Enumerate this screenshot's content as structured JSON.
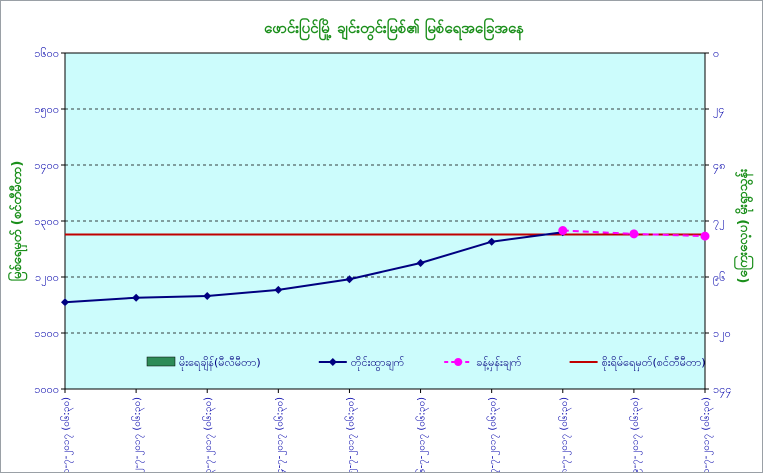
{
  "colors": {
    "plot_bg": "#ccfcfc",
    "title": "#1b8f1b",
    "axis_text": "#0000aa",
    "left_axis_label": "#1b8f1b",
    "right_axis_label": "#1b8f1b",
    "observed_line": "#000080",
    "forecast_line": "#ff00ff",
    "danger_line": "#c00000",
    "rainfall_swatch": "#2e8b57"
  },
  "chart_data": {
    "type": "line",
    "title": "ဖောင်းပြင်မြို့ ချင်းတွင်းမြစ်၏ မြစ်ရေအခြေအနေ",
    "ylabel_left": "မြစ်ရေမှတ် (စင်တီမီတာ)",
    "ylabel_right": "(ကြေးလေ့ပ) မိုးရွာသွန်း",
    "y_left_ticks": [
      "၁၆၀၀",
      "၁၅၀၀",
      "၁၄၀၀",
      "၁၃၀၀",
      "၁၂၀၀",
      "၁၁၀၀",
      "၁၀၀၀"
    ],
    "y_left_range": [
      1000,
      1600
    ],
    "y_right_ticks": [
      "၀",
      "၂၄",
      "၄၈",
      "၇၂",
      "၉၆",
      "၁၂၀",
      "၁၄၄"
    ],
    "y_right_range": [
      0,
      144
    ],
    "y_right_inverted": true,
    "x_tick_labels": [
      "၁၁-၇-၂၀၁၇ (၀၆:၃၀)",
      "၁၂-၇-၂၀၁၇ (၀၆:၃၀)",
      "၁၃-၇-၂၀၁၇ (၀၆:၃၀)",
      "၁၄-၇-၂၀၁၇ (၀၆:၃၀)",
      "၁၅-၇-၂၀၁၇ (၀၆:၃၀)",
      "၁၆-၇-၂၀၁၇ (၀၆:၃၀)",
      "၁၇-၇-၂၀၁၇ (၀၆:၃၀)",
      "၁၈-၇-၂၀၁၇ (၀၆:၃၀)",
      "၁၉-၇-၂၀၁၇ (၀၆:၃၀)",
      "၂၀-၇-၂၀၁၇ (၀၆:၃၀)"
    ],
    "grid": true,
    "legend_position": "bottom-center",
    "series": [
      {
        "name": "မိုးရေချိန်(မီလီမီတာ)",
        "kind": "bar",
        "axis": "right",
        "values": [
          0,
          0,
          0,
          0,
          0,
          0,
          0,
          0,
          0,
          0
        ]
      },
      {
        "name": "တိုင်းထွာချက်",
        "kind": "line",
        "marker": "diamond",
        "axis": "left",
        "values": [
          1155,
          1163,
          1166,
          1177,
          1196,
          1225,
          1263,
          1280,
          null,
          null
        ]
      },
      {
        "name": "ခန့်မှန်းချက်",
        "kind": "dashed-line",
        "marker": "circle",
        "axis": "left",
        "start_index": 7,
        "values": [
          null,
          null,
          null,
          null,
          null,
          null,
          null,
          1283,
          1277,
          1273
        ]
      },
      {
        "name": "စိုးရိမ်ရေမှတ်(စင်တီမီတာ)",
        "kind": "hline",
        "axis": "left",
        "value": 1276
      }
    ]
  }
}
